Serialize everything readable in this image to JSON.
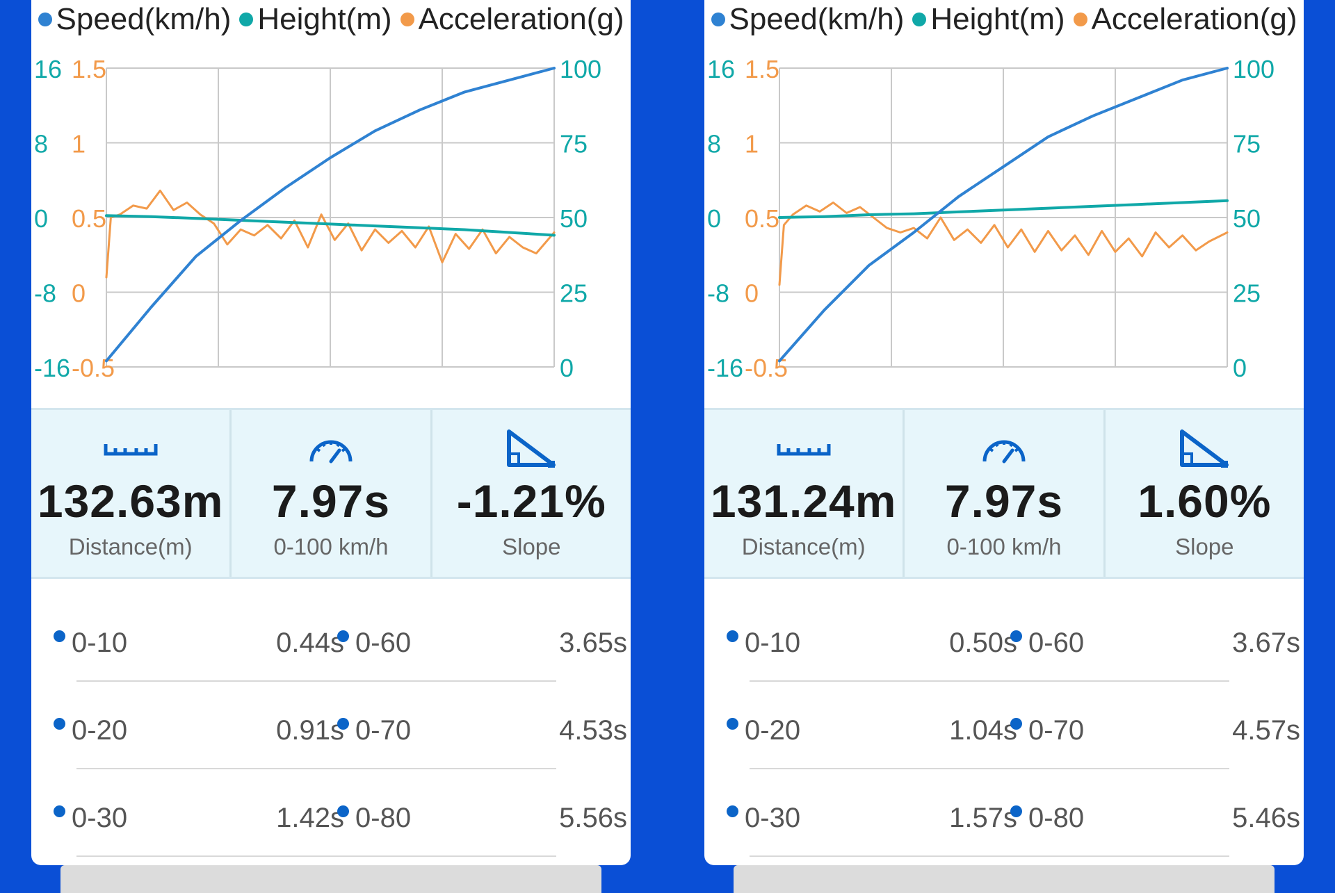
{
  "colors": {
    "speed": "#2f82d2",
    "height": "#10a8a8",
    "acceleration": "#f29a4a",
    "background": "#0a4fd6",
    "accent": "#0b64c8"
  },
  "legend": {
    "speed": "Speed(km/h)",
    "height": "Height(m)",
    "acceleration": "Acceleration(g)"
  },
  "panels": [
    {
      "chart_data": {
        "type": "line",
        "x": "time (unlabeled)",
        "xlim": [
          0,
          100
        ],
        "axes": {
          "height_ticks": [
            "16",
            "8",
            "0",
            "-8",
            "-16"
          ],
          "height_range": [
            -16,
            16
          ],
          "accel_ticks": [
            "1.5",
            "1",
            "0.5",
            "0",
            "-0.5"
          ],
          "accel_range": [
            -0.5,
            1.5
          ],
          "speed_ticks": [
            "100",
            "75",
            "50",
            "25",
            "0"
          ],
          "speed_range": [
            0,
            100
          ]
        },
        "series": [
          {
            "name": "Speed(km/h)",
            "x": [
              0,
              10,
              20,
              30,
              40,
              50,
              60,
              70,
              80,
              90,
              100
            ],
            "values": [
              2,
              20,
              37,
              49,
              60,
              70,
              79,
              86,
              92,
              96,
              100
            ]
          },
          {
            "name": "Height(m)",
            "x": [
              0,
              10,
              20,
              30,
              40,
              50,
              60,
              70,
              80,
              90,
              100
            ],
            "values": [
              0.2,
              0.1,
              -0.1,
              -0.3,
              -0.5,
              -0.7,
              -0.9,
              -1.1,
              -1.3,
              -1.6,
              -1.9
            ]
          },
          {
            "name": "Acceleration(g)",
            "x": [
              0,
              1,
              3,
              6,
              9,
              12,
              15,
              18,
              21,
              24,
              27,
              30,
              33,
              36,
              39,
              42,
              45,
              48,
              51,
              54,
              57,
              60,
              63,
              66,
              69,
              72,
              75,
              78,
              81,
              84,
              87,
              90,
              93,
              96,
              100
            ],
            "values": [
              0.1,
              0.5,
              0.52,
              0.58,
              0.56,
              0.68,
              0.55,
              0.6,
              0.52,
              0.46,
              0.32,
              0.42,
              0.38,
              0.45,
              0.36,
              0.48,
              0.3,
              0.52,
              0.35,
              0.46,
              0.28,
              0.42,
              0.33,
              0.41,
              0.3,
              0.44,
              0.2,
              0.39,
              0.29,
              0.42,
              0.26,
              0.37,
              0.3,
              0.26,
              0.4
            ]
          }
        ]
      },
      "stats": {
        "distance": {
          "value": "132.63m",
          "label": "Distance(m)"
        },
        "accel_time": {
          "value": "7.97s",
          "label": "0-100 km/h"
        },
        "slope": {
          "value": "-1.21%",
          "label": "Slope"
        }
      },
      "splits": [
        {
          "left_label": "0-10",
          "left_value": "0.44s",
          "right_label": "0-60",
          "right_value": "3.65s"
        },
        {
          "left_label": "0-20",
          "left_value": "0.91s",
          "right_label": "0-70",
          "right_value": "4.53s"
        },
        {
          "left_label": "0-30",
          "left_value": "1.42s",
          "right_label": "0-80",
          "right_value": "5.56s"
        }
      ]
    },
    {
      "chart_data": {
        "type": "line",
        "x": "time (unlabeled)",
        "xlim": [
          0,
          100
        ],
        "axes": {
          "height_ticks": [
            "16",
            "8",
            "0",
            "-8",
            "-16"
          ],
          "height_range": [
            -16,
            16
          ],
          "accel_ticks": [
            "1.5",
            "1",
            "0.5",
            "0",
            "-0.5"
          ],
          "accel_range": [
            -0.5,
            1.5
          ],
          "speed_ticks": [
            "100",
            "75",
            "50",
            "25",
            "0"
          ],
          "speed_range": [
            0,
            100
          ]
        },
        "series": [
          {
            "name": "Speed(km/h)",
            "x": [
              0,
              10,
              20,
              30,
              40,
              50,
              60,
              70,
              80,
              90,
              100
            ],
            "values": [
              2,
              19,
              34,
              45,
              57,
              67,
              77,
              84,
              90,
              96,
              100
            ]
          },
          {
            "name": "Height(m)",
            "x": [
              0,
              10,
              20,
              30,
              40,
              50,
              60,
              70,
              80,
              90,
              100
            ],
            "values": [
              0.0,
              0.1,
              0.3,
              0.4,
              0.6,
              0.8,
              1.0,
              1.2,
              1.4,
              1.6,
              1.8
            ]
          },
          {
            "name": "Acceleration(g)",
            "x": [
              0,
              1,
              3,
              6,
              9,
              12,
              15,
              18,
              21,
              24,
              27,
              30,
              33,
              36,
              39,
              42,
              45,
              48,
              51,
              54,
              57,
              60,
              63,
              66,
              69,
              72,
              75,
              78,
              81,
              84,
              87,
              90,
              93,
              96,
              100
            ],
            "values": [
              0.05,
              0.45,
              0.52,
              0.58,
              0.54,
              0.6,
              0.53,
              0.57,
              0.5,
              0.43,
              0.4,
              0.43,
              0.36,
              0.5,
              0.35,
              0.42,
              0.33,
              0.45,
              0.3,
              0.42,
              0.27,
              0.41,
              0.28,
              0.38,
              0.25,
              0.41,
              0.27,
              0.36,
              0.24,
              0.4,
              0.3,
              0.38,
              0.28,
              0.34,
              0.4
            ]
          }
        ]
      },
      "stats": {
        "distance": {
          "value": "131.24m",
          "label": "Distance(m)"
        },
        "accel_time": {
          "value": "7.97s",
          "label": "0-100 km/h"
        },
        "slope": {
          "value": "1.60%",
          "label": "Slope"
        }
      },
      "splits": [
        {
          "left_label": "0-10",
          "left_value": "0.50s",
          "right_label": "0-60",
          "right_value": "3.67s"
        },
        {
          "left_label": "0-20",
          "left_value": "1.04s",
          "right_label": "0-70",
          "right_value": "4.57s"
        },
        {
          "left_label": "0-30",
          "left_value": "1.57s",
          "right_label": "0-80",
          "right_value": "5.46s"
        }
      ]
    }
  ]
}
